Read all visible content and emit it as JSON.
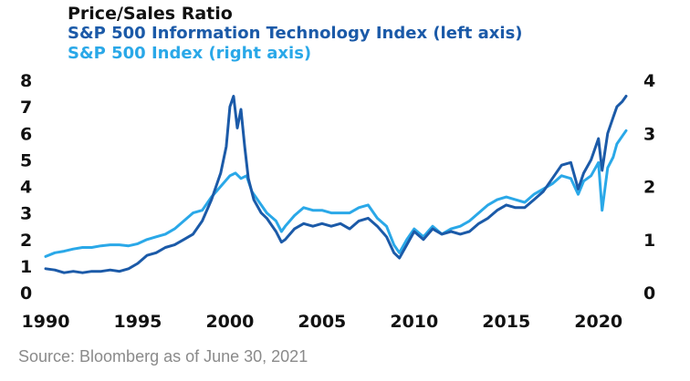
{
  "chart_data": {
    "type": "line",
    "title": "Price/Sales Ratio",
    "xlim": [
      1990,
      2021.6
    ],
    "x_ticks": [
      "1990",
      "1995",
      "2000",
      "2005",
      "2010",
      "2015",
      "2020"
    ],
    "left_axis": {
      "ylim": [
        0,
        8
      ],
      "ticks": [
        "0",
        "1",
        "2",
        "3",
        "4",
        "5",
        "6",
        "7",
        "8"
      ]
    },
    "right_axis": {
      "ylim": [
        0,
        4
      ],
      "ticks": [
        "0",
        "1",
        "2",
        "3",
        "4"
      ]
    },
    "series": [
      {
        "name": "S&P 500 Information Technology Index (left axis)",
        "axis": "left",
        "color": "#1b5aa8",
        "points": [
          [
            1990.0,
            0.9
          ],
          [
            1990.5,
            0.85
          ],
          [
            1991.0,
            0.75
          ],
          [
            1991.5,
            0.8
          ],
          [
            1992.0,
            0.75
          ],
          [
            1992.5,
            0.8
          ],
          [
            1993.0,
            0.8
          ],
          [
            1993.5,
            0.85
          ],
          [
            1994.0,
            0.8
          ],
          [
            1994.5,
            0.9
          ],
          [
            1995.0,
            1.1
          ],
          [
            1995.5,
            1.4
          ],
          [
            1996.0,
            1.5
          ],
          [
            1996.5,
            1.7
          ],
          [
            1997.0,
            1.8
          ],
          [
            1997.5,
            2.0
          ],
          [
            1998.0,
            2.2
          ],
          [
            1998.5,
            2.7
          ],
          [
            1999.0,
            3.5
          ],
          [
            1999.5,
            4.5
          ],
          [
            1999.8,
            5.5
          ],
          [
            2000.0,
            7.0
          ],
          [
            2000.2,
            7.4
          ],
          [
            2000.4,
            6.2
          ],
          [
            2000.6,
            6.9
          ],
          [
            2000.8,
            5.5
          ],
          [
            2001.0,
            4.3
          ],
          [
            2001.3,
            3.5
          ],
          [
            2001.7,
            3.0
          ],
          [
            2002.0,
            2.8
          ],
          [
            2002.5,
            2.3
          ],
          [
            2002.8,
            1.9
          ],
          [
            2003.0,
            2.0
          ],
          [
            2003.5,
            2.4
          ],
          [
            2004.0,
            2.6
          ],
          [
            2004.5,
            2.5
          ],
          [
            2005.0,
            2.6
          ],
          [
            2005.5,
            2.5
          ],
          [
            2006.0,
            2.6
          ],
          [
            2006.5,
            2.4
          ],
          [
            2007.0,
            2.7
          ],
          [
            2007.5,
            2.8
          ],
          [
            2008.0,
            2.5
          ],
          [
            2008.5,
            2.1
          ],
          [
            2008.9,
            1.5
          ],
          [
            2009.2,
            1.3
          ],
          [
            2009.6,
            1.8
          ],
          [
            2010.0,
            2.3
          ],
          [
            2010.5,
            2.0
          ],
          [
            2011.0,
            2.4
          ],
          [
            2011.5,
            2.2
          ],
          [
            2012.0,
            2.3
          ],
          [
            2012.5,
            2.2
          ],
          [
            2013.0,
            2.3
          ],
          [
            2013.5,
            2.6
          ],
          [
            2014.0,
            2.8
          ],
          [
            2014.5,
            3.1
          ],
          [
            2015.0,
            3.3
          ],
          [
            2015.5,
            3.2
          ],
          [
            2016.0,
            3.2
          ],
          [
            2016.5,
            3.5
          ],
          [
            2017.0,
            3.8
          ],
          [
            2017.5,
            4.3
          ],
          [
            2018.0,
            4.8
          ],
          [
            2018.5,
            4.9
          ],
          [
            2018.9,
            3.9
          ],
          [
            2019.2,
            4.5
          ],
          [
            2019.6,
            5.0
          ],
          [
            2020.0,
            5.8
          ],
          [
            2020.2,
            4.6
          ],
          [
            2020.5,
            6.0
          ],
          [
            2020.8,
            6.6
          ],
          [
            2021.0,
            7.0
          ],
          [
            2021.3,
            7.2
          ],
          [
            2021.5,
            7.4
          ]
        ]
      },
      {
        "name": "S&P 500 Index (right axis)",
        "axis": "right",
        "color": "#2aa8e8",
        "points": [
          [
            1990.0,
            0.68
          ],
          [
            1990.5,
            0.75
          ],
          [
            1991.0,
            0.78
          ],
          [
            1991.5,
            0.82
          ],
          [
            1992.0,
            0.85
          ],
          [
            1992.5,
            0.85
          ],
          [
            1993.0,
            0.88
          ],
          [
            1993.5,
            0.9
          ],
          [
            1994.0,
            0.9
          ],
          [
            1994.5,
            0.88
          ],
          [
            1995.0,
            0.92
          ],
          [
            1995.5,
            1.0
          ],
          [
            1996.0,
            1.05
          ],
          [
            1996.5,
            1.1
          ],
          [
            1997.0,
            1.2
          ],
          [
            1997.5,
            1.35
          ],
          [
            1998.0,
            1.5
          ],
          [
            1998.5,
            1.55
          ],
          [
            1999.0,
            1.8
          ],
          [
            1999.5,
            2.0
          ],
          [
            2000.0,
            2.2
          ],
          [
            2000.3,
            2.25
          ],
          [
            2000.6,
            2.15
          ],
          [
            2000.9,
            2.2
          ],
          [
            2001.2,
            1.9
          ],
          [
            2001.6,
            1.7
          ],
          [
            2002.0,
            1.5
          ],
          [
            2002.5,
            1.35
          ],
          [
            2002.8,
            1.15
          ],
          [
            2003.0,
            1.25
          ],
          [
            2003.5,
            1.45
          ],
          [
            2004.0,
            1.6
          ],
          [
            2004.5,
            1.55
          ],
          [
            2005.0,
            1.55
          ],
          [
            2005.5,
            1.5
          ],
          [
            2006.0,
            1.5
          ],
          [
            2006.5,
            1.5
          ],
          [
            2007.0,
            1.6
          ],
          [
            2007.5,
            1.65
          ],
          [
            2008.0,
            1.4
          ],
          [
            2008.5,
            1.25
          ],
          [
            2008.9,
            0.9
          ],
          [
            2009.2,
            0.75
          ],
          [
            2009.6,
            1.0
          ],
          [
            2010.0,
            1.2
          ],
          [
            2010.5,
            1.05
          ],
          [
            2011.0,
            1.25
          ],
          [
            2011.5,
            1.1
          ],
          [
            2012.0,
            1.2
          ],
          [
            2012.5,
            1.25
          ],
          [
            2013.0,
            1.35
          ],
          [
            2013.5,
            1.5
          ],
          [
            2014.0,
            1.65
          ],
          [
            2014.5,
            1.75
          ],
          [
            2015.0,
            1.8
          ],
          [
            2015.5,
            1.75
          ],
          [
            2016.0,
            1.7
          ],
          [
            2016.5,
            1.85
          ],
          [
            2017.0,
            1.95
          ],
          [
            2017.5,
            2.05
          ],
          [
            2018.0,
            2.2
          ],
          [
            2018.5,
            2.15
          ],
          [
            2018.9,
            1.85
          ],
          [
            2019.2,
            2.1
          ],
          [
            2019.6,
            2.2
          ],
          [
            2020.0,
            2.45
          ],
          [
            2020.2,
            1.55
          ],
          [
            2020.5,
            2.35
          ],
          [
            2020.8,
            2.55
          ],
          [
            2021.0,
            2.8
          ],
          [
            2021.3,
            2.95
          ],
          [
            2021.5,
            3.05
          ]
        ]
      }
    ]
  },
  "source": "Source: Bloomberg as of June 30, 2021"
}
